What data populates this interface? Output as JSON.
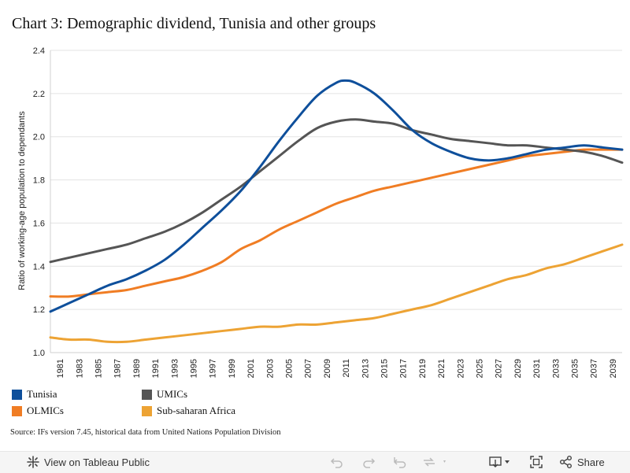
{
  "chart_data": {
    "type": "line",
    "title": "Chart 3: Demographic dividend, Tunisia and other groups",
    "ylabel": "Ratio of working-age population to dependants",
    "ylim": [
      1.0,
      2.4
    ],
    "xlim": [
      1980,
      2040
    ],
    "yticks": [
      "1.0",
      "1.2",
      "1.4",
      "1.6",
      "1.8",
      "2.0",
      "2.2",
      "2.4"
    ],
    "xticks": [
      "1981",
      "1983",
      "1985",
      "1987",
      "1989",
      "1991",
      "1993",
      "1995",
      "1997",
      "1999",
      "2001",
      "2003",
      "2005",
      "2007",
      "2009",
      "2011",
      "2013",
      "2015",
      "2017",
      "2019",
      "2021",
      "2023",
      "2025",
      "2027",
      "2029",
      "2031",
      "2033",
      "2035",
      "2037",
      "2039"
    ],
    "grid": "horizontal",
    "legend_position": "bottom",
    "series": [
      {
        "name": "Tunisia",
        "color": "#0e4f9b",
        "x": [
          1980,
          1982,
          1984,
          1986,
          1988,
          1990,
          1992,
          1994,
          1996,
          1998,
          2000,
          2002,
          2004,
          2006,
          2008,
          2010,
          2011,
          2012,
          2014,
          2016,
          2018,
          2020,
          2022,
          2024,
          2026,
          2028,
          2030,
          2032,
          2034,
          2036,
          2038,
          2040
        ],
        "values": [
          1.19,
          1.23,
          1.27,
          1.31,
          1.34,
          1.38,
          1.43,
          1.5,
          1.58,
          1.66,
          1.75,
          1.86,
          1.98,
          2.09,
          2.19,
          2.25,
          2.26,
          2.25,
          2.2,
          2.12,
          2.03,
          1.97,
          1.93,
          1.9,
          1.89,
          1.9,
          1.92,
          1.94,
          1.95,
          1.96,
          1.95,
          1.94
        ]
      },
      {
        "name": "UMICs",
        "color": "#555555",
        "x": [
          1980,
          1982,
          1984,
          1986,
          1988,
          1990,
          1992,
          1994,
          1996,
          1998,
          2000,
          2002,
          2004,
          2006,
          2008,
          2010,
          2012,
          2014,
          2016,
          2018,
          2020,
          2022,
          2024,
          2026,
          2028,
          2030,
          2032,
          2034,
          2036,
          2038,
          2040
        ],
        "values": [
          1.42,
          1.44,
          1.46,
          1.48,
          1.5,
          1.53,
          1.56,
          1.6,
          1.65,
          1.71,
          1.77,
          1.84,
          1.91,
          1.98,
          2.04,
          2.07,
          2.08,
          2.07,
          2.06,
          2.03,
          2.01,
          1.99,
          1.98,
          1.97,
          1.96,
          1.96,
          1.95,
          1.94,
          1.93,
          1.91,
          1.88
        ]
      },
      {
        "name": "OLMICs",
        "color": "#f07d24",
        "x": [
          1980,
          1982,
          1984,
          1986,
          1988,
          1990,
          1992,
          1994,
          1996,
          1998,
          2000,
          2002,
          2004,
          2006,
          2008,
          2010,
          2012,
          2014,
          2016,
          2018,
          2020,
          2022,
          2024,
          2026,
          2028,
          2030,
          2032,
          2034,
          2036,
          2038,
          2040
        ],
        "values": [
          1.26,
          1.26,
          1.27,
          1.28,
          1.29,
          1.31,
          1.33,
          1.35,
          1.38,
          1.42,
          1.48,
          1.52,
          1.57,
          1.61,
          1.65,
          1.69,
          1.72,
          1.75,
          1.77,
          1.79,
          1.81,
          1.83,
          1.85,
          1.87,
          1.89,
          1.91,
          1.92,
          1.93,
          1.94,
          1.94,
          1.94
        ]
      },
      {
        "name": "Sub-saharan Africa",
        "color": "#eda334",
        "x": [
          1980,
          1982,
          1984,
          1986,
          1988,
          1990,
          1992,
          1994,
          1996,
          1998,
          2000,
          2002,
          2004,
          2006,
          2008,
          2010,
          2012,
          2014,
          2016,
          2018,
          2020,
          2022,
          2024,
          2026,
          2028,
          2030,
          2032,
          2034,
          2036,
          2038,
          2040
        ],
        "values": [
          1.07,
          1.06,
          1.06,
          1.05,
          1.05,
          1.06,
          1.07,
          1.08,
          1.09,
          1.1,
          1.11,
          1.12,
          1.12,
          1.13,
          1.13,
          1.14,
          1.15,
          1.16,
          1.18,
          1.2,
          1.22,
          1.25,
          1.28,
          1.31,
          1.34,
          1.36,
          1.39,
          1.41,
          1.44,
          1.47,
          1.5
        ]
      }
    ]
  },
  "legend": {
    "items": [
      {
        "label": "Tunisia",
        "color": "#0e4f9b"
      },
      {
        "label": "UMICs",
        "color": "#555555"
      },
      {
        "label": "OLMICs",
        "color": "#f07d24"
      },
      {
        "label": "Sub-saharan Africa",
        "color": "#eda334"
      }
    ]
  },
  "source": "Source: IFs version 7.45, historical data from United Nations Population Division",
  "toolbar": {
    "view_label": "View on Tableau Public",
    "share_label": "Share",
    "icons": [
      "tableau-icon",
      "undo-icon",
      "redo-icon",
      "revert-icon",
      "refresh-icon",
      "dropdown-caret-icon",
      "download-icon",
      "fullscreen-icon",
      "share-icon"
    ]
  }
}
